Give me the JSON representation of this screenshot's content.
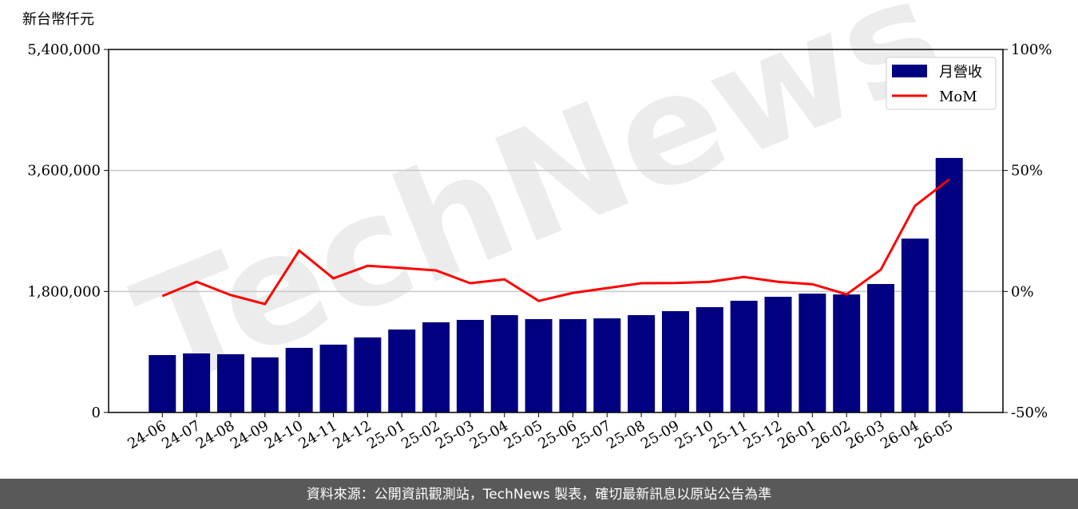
{
  "chart_data": {
    "type": "bar_line",
    "y_label": "新台幣仟元",
    "watermark": "TechNews",
    "source": "資料來源：公開資訊觀測站，TechNews 製表，確切最新訊息以原站公告為準",
    "categories": [
      "24-06",
      "24-07",
      "24-08",
      "24-09",
      "24-10",
      "24-11",
      "24-12",
      "25-01",
      "25-02",
      "25-03",
      "25-04",
      "25-05",
      "25-06",
      "25-07",
      "25-08",
      "25-09",
      "25-10",
      "25-11",
      "25-12",
      "26-01",
      "26-02",
      "26-03",
      "26-04",
      "26-05"
    ],
    "series": [
      {
        "name": "月營收",
        "color": "#000080",
        "values": [
          854000,
          878000,
          866000,
          819000,
          961000,
          1009000,
          1116000,
          1234000,
          1341000,
          1377000,
          1448000,
          1389000,
          1389000,
          1400000,
          1448000,
          1507000,
          1567000,
          1662000,
          1721000,
          1768000,
          1756000,
          1911000,
          2587000,
          3786000
        ]
      },
      {
        "name": "MoM",
        "color": "#ff0000",
        "axis": "y2",
        "values": [
          -1.9,
          4,
          -1.5,
          -5.2,
          16.9,
          5.4,
          10.6,
          9.7,
          8.7,
          3.4,
          5,
          -3.9,
          -0.6,
          1.4,
          3.4,
          3.5,
          4,
          6,
          4,
          3,
          -1.2,
          9,
          35.4,
          46.3
        ]
      }
    ],
    "ylim": [
      0,
      5400000
    ],
    "yticks": [
      0,
      {
        "value": 1800000,
        "label": "1,800,000"
      },
      {
        "value": 3600000,
        "label": "3,600,000"
      },
      {
        "value": 5400000,
        "label": "5,400,000"
      }
    ],
    "y2lim": [
      -50,
      100
    ],
    "y2ticks": [
      {
        "value": -50,
        "label": "-50%"
      },
      {
        "value": 0,
        "label": "0%"
      },
      {
        "value": 50,
        "label": "50%"
      },
      {
        "value": 100,
        "label": "100%"
      }
    ],
    "grid": true,
    "legend": "upper right"
  }
}
